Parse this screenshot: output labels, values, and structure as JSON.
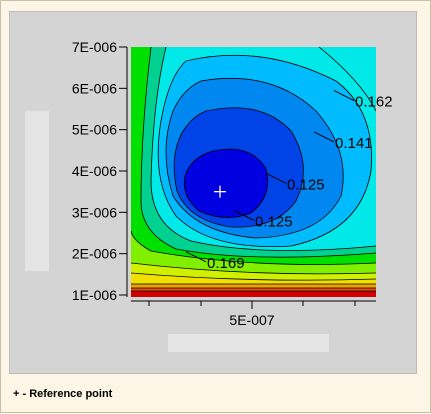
{
  "chart_data": {
    "type": "contour",
    "x_ticks": [
      "5E-007"
    ],
    "y_ticks": [
      "1E-006",
      "2E-006",
      "3E-006",
      "4E-006",
      "5E-006",
      "6E-006",
      "7E-006"
    ],
    "contour_labels": [
      {
        "text": "0.162",
        "x": 7.2e-07,
        "y": 5.8e-06
      },
      {
        "text": "0.141",
        "x": 6.7e-07,
        "y": 4.8e-06
      },
      {
        "text": "0.125",
        "x": 5.5e-07,
        "y": 3.8e-06
      },
      {
        "text": "0.125",
        "x": 4.7e-07,
        "y": 2.9e-06
      },
      {
        "text": "0.169",
        "x": 3.5e-07,
        "y": 1.9e-06
      }
    ],
    "reference_point": {
      "x": 4.2e-07,
      "y": 3.5e-06
    },
    "colors": [
      "#0000e0",
      "#0044e8",
      "#0088f0",
      "#00bcff",
      "#00e8e8",
      "#00d090",
      "#00e000",
      "#80f000",
      "#d0f000",
      "#f0e000",
      "#f0a000",
      "#e05000",
      "#d00000"
    ]
  },
  "legend_note": "+ - Reference point"
}
